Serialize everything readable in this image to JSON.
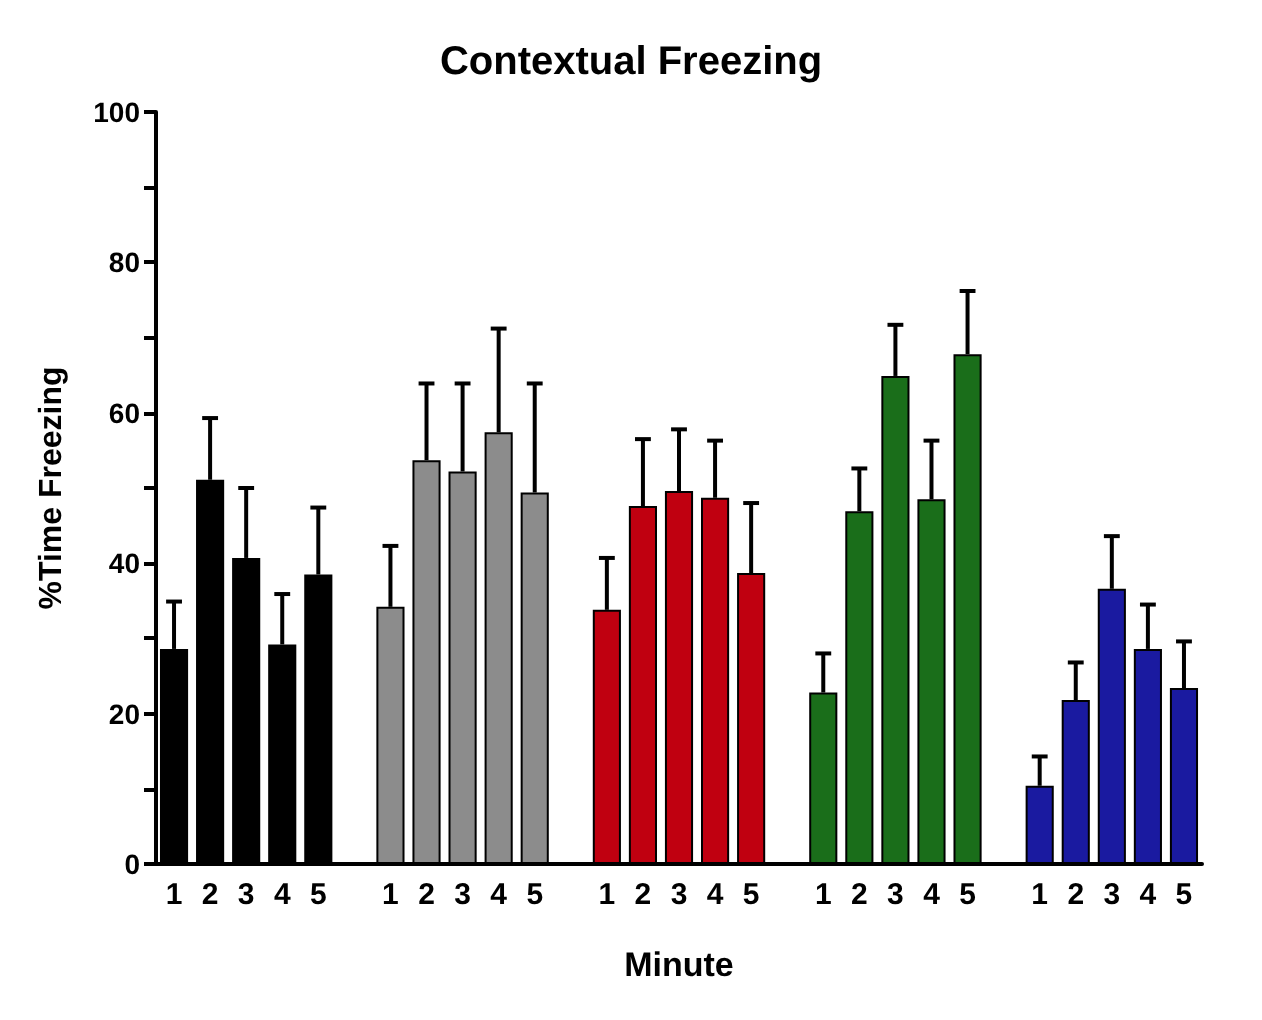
{
  "chart_data": {
    "type": "bar",
    "title": "Contextual Freezing",
    "xlabel": "Minute",
    "ylabel": "%Time Freezing",
    "categories": [
      "1",
      "2",
      "3",
      "4",
      "5",
      null,
      "1",
      "2",
      "3",
      "4",
      "5",
      null,
      "1",
      "2",
      "3",
      "4",
      "5",
      null,
      "1",
      "2",
      "3",
      "4",
      "5",
      null,
      "1",
      "2",
      "3",
      "4",
      "5"
    ],
    "values": [
      28.6,
      51.1,
      40.7,
      29.2,
      38.5,
      null,
      34.2,
      53.7,
      52.2,
      57.4,
      49.4,
      null,
      33.8,
      47.6,
      49.6,
      48.7,
      38.7,
      null,
      22.8,
      46.9,
      64.9,
      48.5,
      67.8,
      null,
      10.4,
      21.8,
      36.6,
      28.6,
      23.4
    ],
    "errors": [
      [
        28.6,
        34.9
      ],
      [
        51.1,
        59.3
      ],
      [
        40.7,
        50
      ],
      [
        29.2,
        35.9
      ],
      [
        38.5,
        47.4
      ],
      null,
      [
        34.2,
        42.3
      ],
      [
        53.7,
        63.9
      ],
      [
        52.2,
        63.9
      ],
      [
        57.4,
        71.2
      ],
      [
        49.4,
        63.9
      ],
      null,
      [
        33.8,
        40.7
      ],
      [
        47.6,
        56.5
      ],
      [
        49.6,
        57.8
      ],
      [
        48.7,
        56.3
      ],
      [
        38.7,
        48
      ],
      null,
      [
        22.8,
        28
      ],
      [
        46.9,
        52.6
      ],
      [
        64.9,
        71.7
      ],
      [
        48.5,
        56.3
      ],
      [
        67.8,
        76.2
      ],
      null,
      [
        10.4,
        14.3
      ],
      [
        21.8,
        26.8
      ],
      [
        36.6,
        43.6
      ],
      [
        28.6,
        34.5
      ],
      [
        23.4,
        29.6
      ]
    ],
    "colors": [
      "#000000",
      "#000000",
      "#000000",
      "#000000",
      "#000000",
      null,
      "#8c8c8c",
      "#8c8c8c",
      "#8c8c8c",
      "#8c8c8c",
      "#8c8c8c",
      null,
      "#c00010",
      "#c00010",
      "#c00010",
      "#c00010",
      "#c00010",
      null,
      "#1a6e1a",
      "#1a6e1a",
      "#1a6e1a",
      "#1a6e1a",
      "#1a6e1a",
      null,
      "#1a1aa0",
      "#1a1aa0",
      "#1a1aa0",
      "#1a1aa0",
      "#1a1aa0"
    ],
    "ylim": [
      0,
      100
    ],
    "yticks": [
      0,
      {
        "value": 10,
        "label": null
      },
      20,
      {
        "value": 30,
        "label": null
      },
      40,
      {
        "value": 50,
        "label": null
      },
      60,
      {
        "value": 70,
        "label": null
      },
      80,
      {
        "value": 90,
        "label": null
      },
      100
    ],
    "grid": false
  }
}
